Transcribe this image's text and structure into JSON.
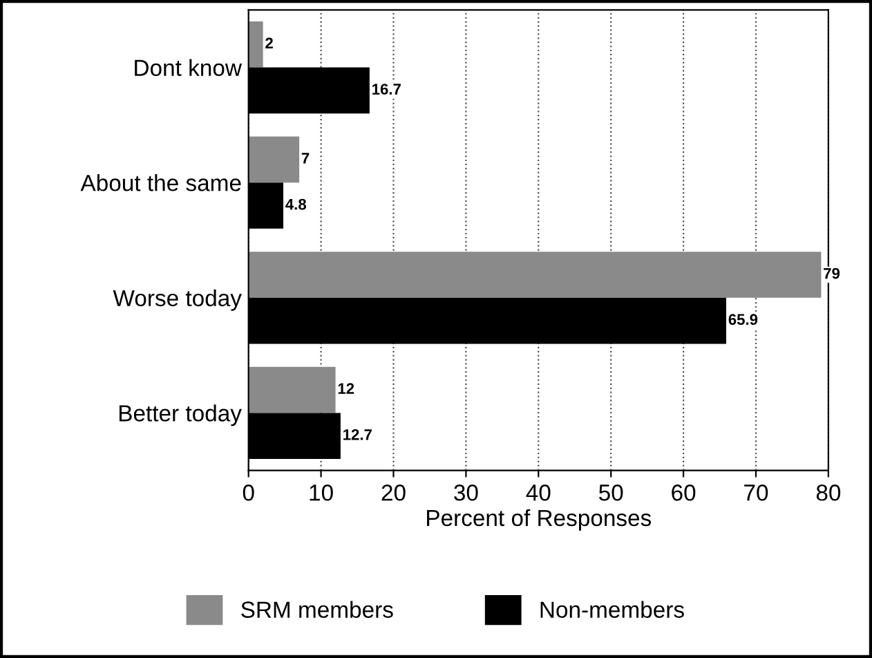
{
  "chart_data": {
    "type": "bar",
    "orientation": "horizontal",
    "categories": [
      "Dont know",
      "About the same",
      "Worse today",
      "Better today"
    ],
    "series": [
      {
        "name": "SRM members",
        "color": "#8a8a8a",
        "values": [
          2,
          7,
          79,
          12
        ]
      },
      {
        "name": "Non-members",
        "color": "#000000",
        "values": [
          16.7,
          4.8,
          65.9,
          12.7
        ]
      }
    ],
    "xlabel": "Percent of Responses",
    "xlim": [
      0,
      80
    ],
    "xticks": [
      0,
      10,
      20,
      30,
      40,
      50,
      60,
      70,
      80
    ],
    "grid": "x",
    "legend": "bottom",
    "data_labels": true
  }
}
